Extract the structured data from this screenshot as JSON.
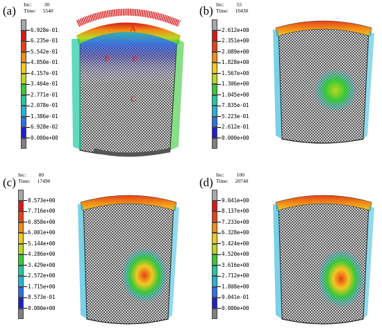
{
  "colors": {
    "scale": [
      "#808080",
      "#2020c8",
      "#2f6fe6",
      "#25b3d6",
      "#20c8a0",
      "#38c838",
      "#b8d820",
      "#f2c820",
      "#f08c18",
      "#e84018",
      "#d81818",
      "#a8a8a8"
    ],
    "mesh": "#2a2a2a"
  },
  "panels": [
    {
      "label": "(a)",
      "inc_label": "Inc:",
      "inc_value": "30",
      "time_label": "Time:",
      "time_value": "5540",
      "ticks": [
        "6.928e-01",
        "6.235e-01",
        "5.542e-01",
        "4.850e-01",
        "4.157e-01",
        "3.464e-01",
        "2.771e-01",
        "2.078e-01",
        "1.386e-01",
        "6.928e-02",
        "0.000e+00"
      ],
      "markers": [
        "A",
        "B",
        "B",
        "C"
      ]
    },
    {
      "label": "(b)",
      "inc_label": "Inc:",
      "inc_value": "55",
      "time_label": "Time:",
      "time_value": "10430",
      "ticks": [
        "2.612e+00",
        "2.351e+00",
        "2.089e+00",
        "1.828e+00",
        "1.567e+00",
        "1.306e+00",
        "1.045e+00",
        "7.835e-01",
        "5.223e-01",
        "2.612e-01",
        "0.000e+00"
      ]
    },
    {
      "label": "(c)",
      "inc_label": "Inc:",
      "inc_value": "80",
      "time_label": "Time:",
      "time_value": "17490",
      "ticks": [
        "8.573e+00",
        "7.716e+00",
        "6.858e+00",
        "6.001e+00",
        "5.144e+00",
        "4.286e+00",
        "3.429e+00",
        "2.572e+00",
        "1.715e+00",
        "8.573e-01",
        "0.000e+00"
      ]
    },
    {
      "label": "(d)",
      "inc_label": "Inc:",
      "inc_value": "100",
      "time_label": "Time:",
      "time_value": "20740",
      "ticks": [
        "9.041e+00",
        "8.137e+00",
        "7.233e+00",
        "6.328e+00",
        "5.424e+00",
        "4.520e+00",
        "3.616e+00",
        "2.712e+00",
        "1.808e+00",
        "9.041e-01",
        "0.000e+00"
      ]
    }
  ]
}
